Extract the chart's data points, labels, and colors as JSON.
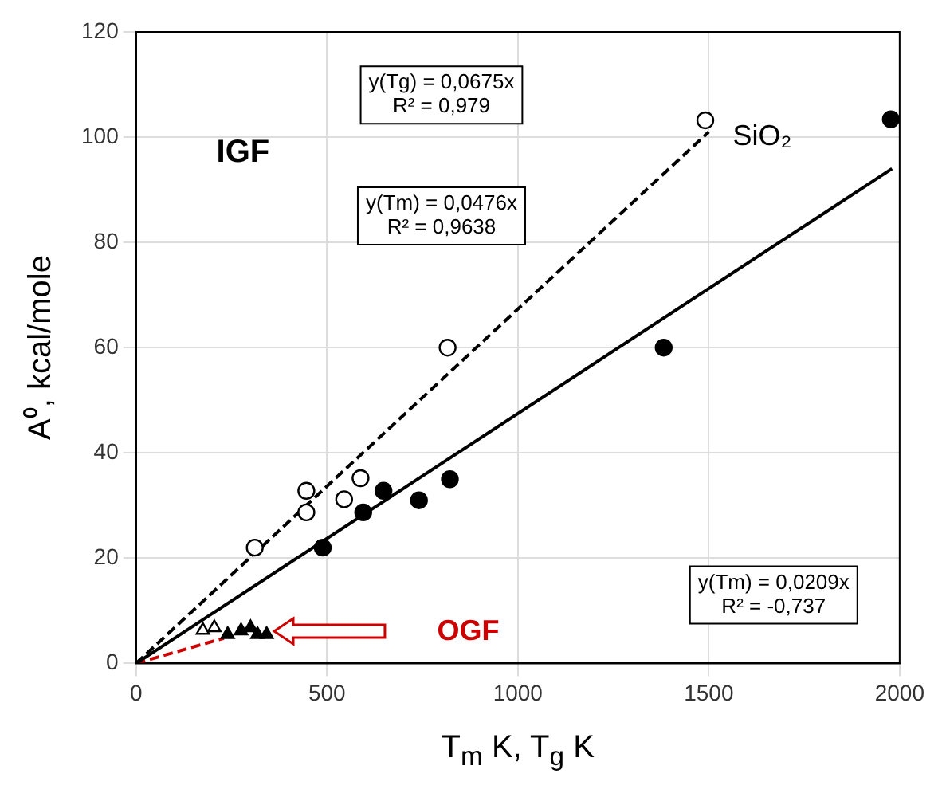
{
  "chart_data": {
    "type": "scatter",
    "xlabel": "T$_{m}$ K, T$_{g}$ K",
    "ylabel": "A⁰, kcal/mole",
    "xlim": [
      0,
      2000
    ],
    "xticks": [
      0,
      500,
      1000,
      1500,
      2000
    ],
    "ylim": [
      0,
      120
    ],
    "yticks": [
      0,
      20,
      40,
      60,
      80,
      100,
      120
    ],
    "grid": true,
    "legend": false,
    "series": [
      {
        "marker": "circle",
        "color": "#ffffff",
        "x": [
          311,
          446,
          446,
          545,
          588,
          816,
          1491
        ],
        "values": [
          22,
          32.8,
          28.7,
          31.2,
          35.2,
          60,
          103.2
        ]
      },
      {
        "marker": "circle",
        "color": "#000000",
        "x": [
          489,
          595,
          648,
          741,
          822,
          1382,
          1977
        ],
        "values": [
          22,
          28.7,
          32.8,
          31,
          35,
          60,
          103.4
        ]
      },
      {
        "marker": "triangle",
        "color": "#ffffff",
        "x": [
          175,
          205
        ],
        "values": [
          6.3,
          6.8
        ]
      },
      {
        "marker": "triangle",
        "color": "#000000",
        "x": [
          240,
          275,
          300,
          318,
          342
        ],
        "values": [
          5.5,
          6.2,
          6.8,
          5.5,
          5.5
        ]
      },
      {
        "type": "line",
        "line_style": "dashed",
        "color": "#000000",
        "x": [
          0,
          1500
        ],
        "values": [
          0,
          101
        ]
      },
      {
        "type": "line",
        "line_style": "solid",
        "color": "#000000",
        "x": [
          0,
          1980
        ],
        "values": [
          0,
          94
        ]
      },
      {
        "type": "line",
        "line_style": "dashed",
        "color": "#cc0000",
        "x": [
          0,
          230
        ],
        "values": [
          0,
          4.8
        ]
      }
    ],
    "annotations": [
      "IGF",
      "SiO₂",
      "OGF",
      "y(Tg) = 0,0675x\nR² = 0,979",
      "y(Tm) = 0,0476x\nR² = 0,9638",
      "y(Tm) = 0,0209x\nR² = -0,737"
    ]
  }
}
